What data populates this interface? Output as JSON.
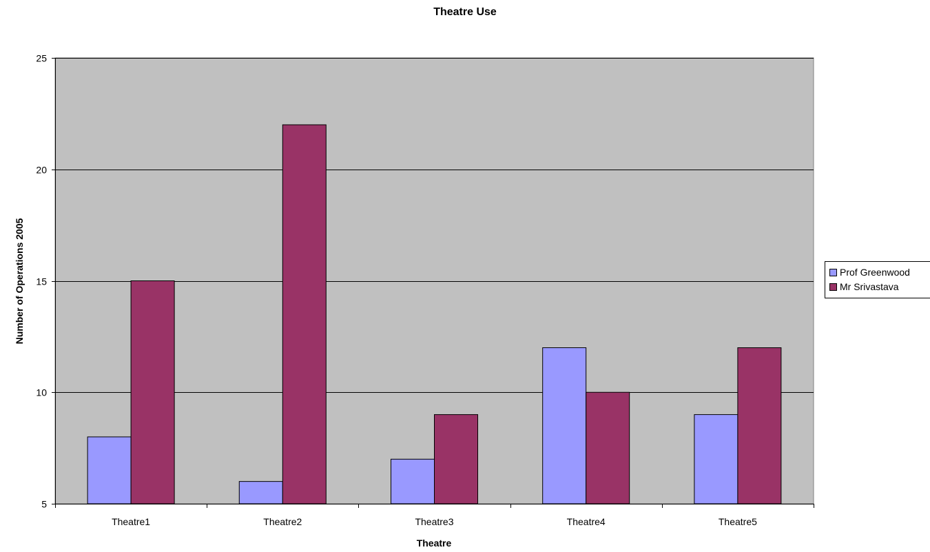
{
  "chart_data": {
    "type": "bar",
    "title": "Theatre Use",
    "xlabel": "Theatre",
    "ylabel": "Number of Operations 2005",
    "categories": [
      "Theatre1",
      "Theatre2",
      "Theatre3",
      "Theatre4",
      "Theatre5"
    ],
    "series": [
      {
        "name": "Prof Greenwood",
        "values": [
          8,
          6,
          7,
          12,
          9
        ],
        "color": "#9999ff"
      },
      {
        "name": "Mr Srivastava",
        "values": [
          15,
          22,
          9,
          10,
          12
        ],
        "color": "#993366"
      }
    ],
    "ylim": [
      5,
      25
    ],
    "yticks": [
      5,
      10,
      15,
      20,
      25
    ],
    "grid": true,
    "plot_background": "#c0c0c0",
    "legend_position": "right"
  }
}
